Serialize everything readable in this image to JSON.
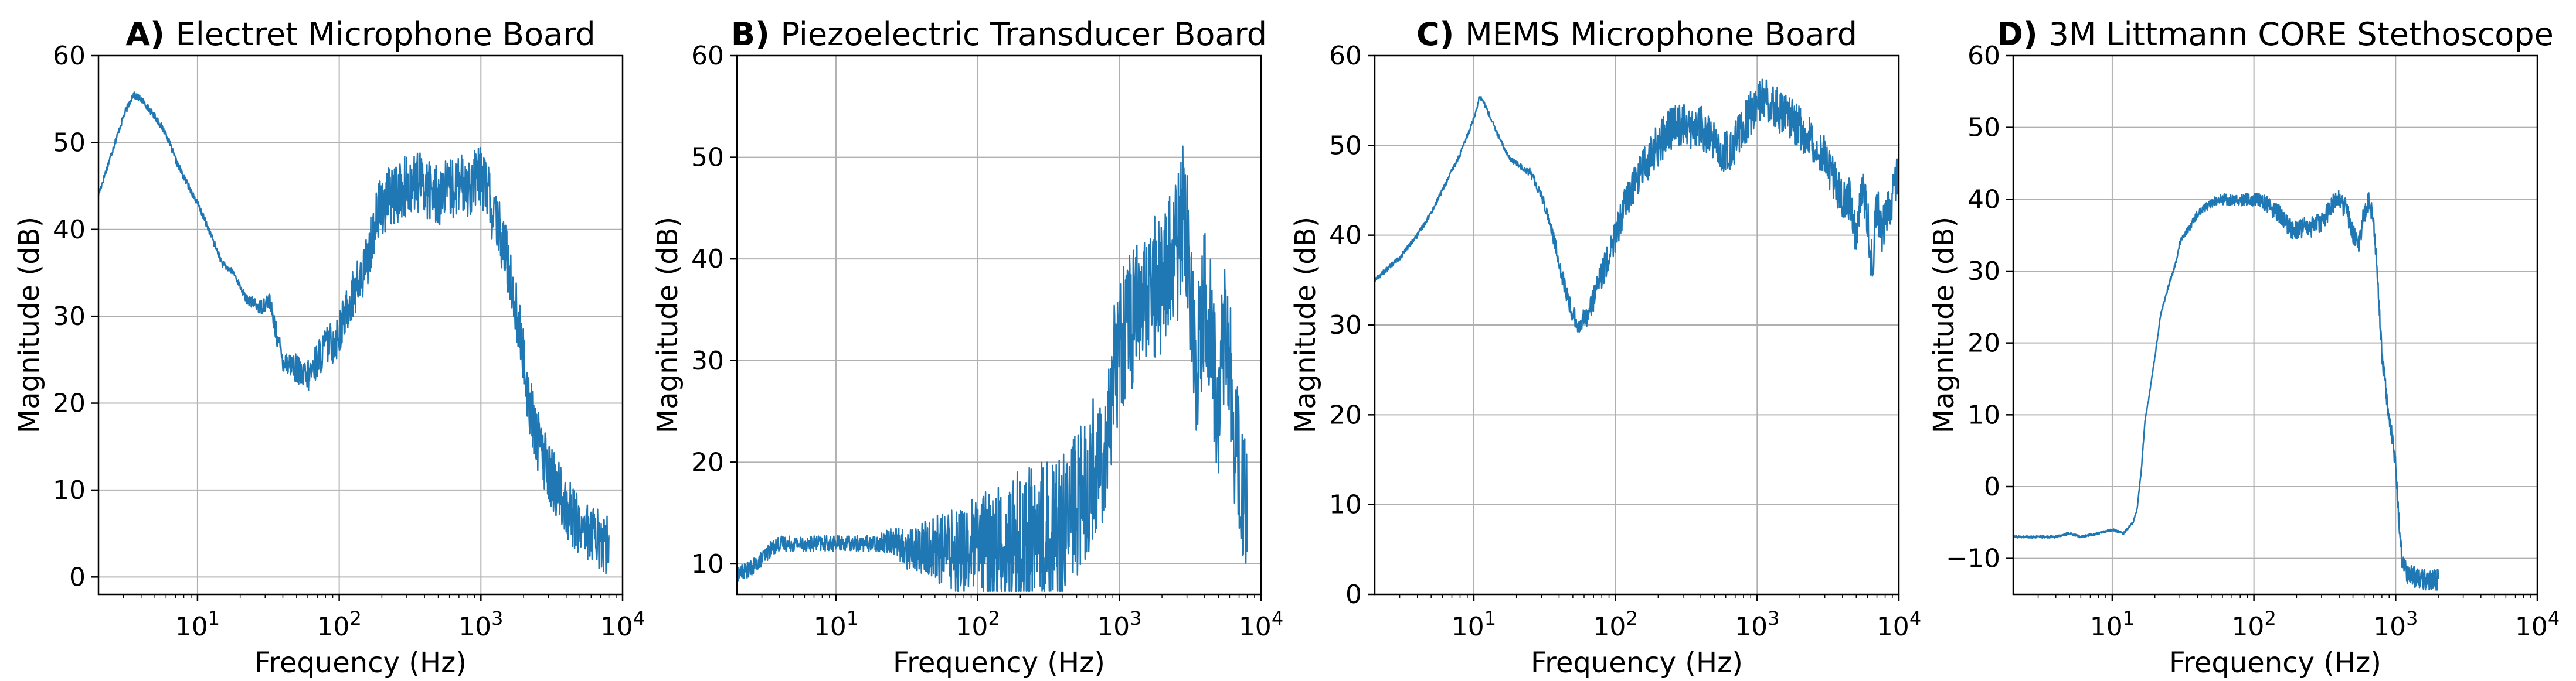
{
  "chart_data": [
    {
      "type": "line",
      "panel_letter": "A)",
      "title": "Electret Microphone Board",
      "xlabel": "Frequency (Hz)",
      "ylabel": "Magnitude (dB)",
      "xscale": "log",
      "xlim": [
        2,
        10000
      ],
      "ylim": [
        -2,
        60
      ],
      "yticks": [
        0,
        10,
        20,
        30,
        40,
        50,
        60
      ],
      "ytick_labels": [
        "0",
        "10",
        "20",
        "30",
        "40",
        "50",
        "60"
      ],
      "xticks": [
        {
          "base": "10",
          "exp": "1"
        },
        {
          "base": "10",
          "exp": "2"
        },
        {
          "base": "10",
          "exp": "3"
        },
        {
          "base": "10",
          "exp": "4"
        }
      ],
      "grid": true,
      "color": "#1f77b4",
      "series": [
        {
          "x": [
            2,
            2.5,
            3,
            3.5,
            4,
            5,
            6,
            7,
            8,
            10,
            12,
            15,
            18,
            22,
            28,
            32,
            36,
            40,
            45,
            50,
            55,
            60,
            65,
            70,
            80,
            90,
            100,
            120,
            150,
            180,
            200,
            250,
            300,
            350,
            400,
            500,
            600,
            700,
            800,
            900,
            1000,
            1100,
            1200,
            1400,
            1600,
            1800,
            2000,
            2200,
            2500,
            3000,
            3500,
            4000,
            5000,
            6000,
            7000,
            8000
          ],
          "y": [
            44,
            49,
            53,
            55.5,
            55,
            53,
            51,
            48,
            46,
            43,
            40,
            36,
            35,
            32,
            31,
            32,
            28,
            25,
            24.5,
            24,
            23,
            23,
            24,
            25,
            26.5,
            27,
            28,
            32,
            35,
            41,
            43,
            44,
            45,
            45.5,
            45,
            44,
            44.5,
            45,
            45,
            45.5,
            46,
            45,
            42,
            39,
            35,
            30,
            25,
            20,
            16,
            12,
            10,
            8,
            6,
            5,
            4,
            3.5
          ],
          "noise": 3.2
        }
      ]
    },
    {
      "type": "line",
      "panel_letter": "B)",
      "title": "Piezoelectric Transducer Board",
      "xlabel": "Frequency (Hz)",
      "ylabel": "Magnitude (dB)",
      "xscale": "log",
      "xlim": [
        2,
        10000
      ],
      "ylim": [
        7,
        60
      ],
      "yticks": [
        10,
        20,
        30,
        40,
        50,
        60
      ],
      "ytick_labels": [
        "10",
        "20",
        "30",
        "40",
        "50",
        "60"
      ],
      "xticks": [
        {
          "base": "10",
          "exp": "1"
        },
        {
          "base": "10",
          "exp": "2"
        },
        {
          "base": "10",
          "exp": "3"
        },
        {
          "base": "10",
          "exp": "4"
        }
      ],
      "grid": true,
      "color": "#1f77b4",
      "series": [
        {
          "x": [
            2,
            2.5,
            3,
            3.5,
            4,
            5,
            6,
            8,
            10,
            15,
            20,
            25,
            30,
            40,
            60,
            80,
            100,
            150,
            200,
            300,
            400,
            500,
            600,
            700,
            800,
            900,
            1000,
            1200,
            1500,
            2000,
            2500,
            2800,
            3000,
            3500,
            4000,
            4500,
            5000,
            5500,
            6000,
            6500,
            7000,
            7500,
            8000
          ],
          "y": [
            9,
            9.5,
            10.5,
            11.5,
            12,
            12,
            12,
            12,
            12,
            12,
            12,
            12.5,
            11.5,
            11.5,
            11.5,
            11.5,
            11.5,
            11.5,
            12,
            13,
            14,
            16,
            18,
            20,
            22,
            28,
            32,
            34,
            36,
            38,
            40,
            44,
            42,
            30,
            36,
            32,
            24,
            34,
            30,
            22,
            20,
            16,
            14
          ],
          "noise": 6.5
        }
      ]
    },
    {
      "type": "line",
      "panel_letter": "C)",
      "title": "MEMS Microphone Board",
      "xlabel": "Frequency (Hz)",
      "ylabel": "Magnitude (dB)",
      "xscale": "log",
      "xlim": [
        2,
        10000
      ],
      "ylim": [
        0,
        60
      ],
      "yticks": [
        0,
        10,
        20,
        30,
        40,
        50,
        60
      ],
      "ytick_labels": [
        "0",
        "10",
        "20",
        "30",
        "40",
        "50",
        "60"
      ],
      "xticks": [
        {
          "base": "10",
          "exp": "1"
        },
        {
          "base": "10",
          "exp": "2"
        },
        {
          "base": "10",
          "exp": "3"
        },
        {
          "base": "10",
          "exp": "4"
        }
      ],
      "grid": true,
      "color": "#1f77b4",
      "series": [
        {
          "x": [
            2,
            3,
            4,
            5,
            6,
            8,
            10,
            11,
            12,
            14,
            16,
            18,
            20,
            25,
            30,
            35,
            40,
            45,
            50,
            55,
            60,
            70,
            80,
            100,
            120,
            150,
            200,
            250,
            300,
            350,
            400,
            500,
            600,
            700,
            800,
            1000,
            1200,
            1500,
            2000,
            2500,
            3000,
            3500,
            4000,
            4500,
            5000,
            5500,
            6000,
            6500,
            7000,
            7500,
            8000,
            9000,
            10000
          ],
          "y": [
            35,
            37.5,
            40,
            42.5,
            45,
            49,
            53,
            55.5,
            54.5,
            52,
            50,
            48.5,
            48,
            47,
            44.5,
            41,
            37,
            33.5,
            31,
            30,
            30.5,
            33,
            35.5,
            40,
            44,
            47,
            50,
            52,
            52.5,
            51.5,
            52,
            50,
            49,
            50.5,
            52,
            55,
            55,
            53.5,
            52,
            50.5,
            49,
            46,
            44.5,
            44,
            40,
            46,
            42,
            36,
            44,
            40,
            42,
            44,
            48
          ],
          "noise": 2.2
        }
      ]
    },
    {
      "type": "line",
      "panel_letter": "D)",
      "title": "3M Littmann CORE Stethoscope",
      "xlabel": "Frequency (Hz)",
      "ylabel": "Magnitude (dB)",
      "xscale": "log",
      "xlim": [
        2,
        10000
      ],
      "ylim": [
        -15,
        60
      ],
      "yticks": [
        -10,
        0,
        10,
        20,
        30,
        40,
        50,
        60
      ],
      "ytick_labels": [
        "−10",
        "0",
        "10",
        "20",
        "30",
        "40",
        "50",
        "60"
      ],
      "xticks": [
        {
          "base": "10",
          "exp": "1"
        },
        {
          "base": "10",
          "exp": "2"
        },
        {
          "base": "10",
          "exp": "3"
        },
        {
          "base": "10",
          "exp": "4"
        }
      ],
      "grid": true,
      "color": "#1f77b4",
      "series": [
        {
          "x": [
            2,
            3,
            4,
            5,
            6,
            8,
            10,
            12,
            14,
            15,
            16,
            17,
            18,
            20,
            22,
            25,
            28,
            30,
            35,
            40,
            50,
            60,
            80,
            100,
            120,
            150,
            180,
            200,
            220,
            250,
            300,
            350,
            400,
            450,
            500,
            550,
            600,
            650,
            700,
            750,
            800,
            900,
            1000,
            1050,
            1100,
            1200,
            1500,
            2000
          ],
          "y": [
            -7,
            -7,
            -7,
            -6.5,
            -7,
            -6.5,
            -6,
            -6.5,
            -5,
            -3,
            2,
            9,
            12,
            18,
            24,
            28,
            31,
            34,
            36,
            38,
            39.5,
            40,
            40,
            40,
            39.5,
            38,
            36,
            35.5,
            36,
            36,
            37,
            39,
            40,
            38.5,
            35,
            34,
            38,
            40,
            37,
            28,
            18,
            10,
            3,
            -4,
            -10,
            -12,
            -13,
            -13
          ],
          "noise": 1.3
        }
      ]
    }
  ]
}
